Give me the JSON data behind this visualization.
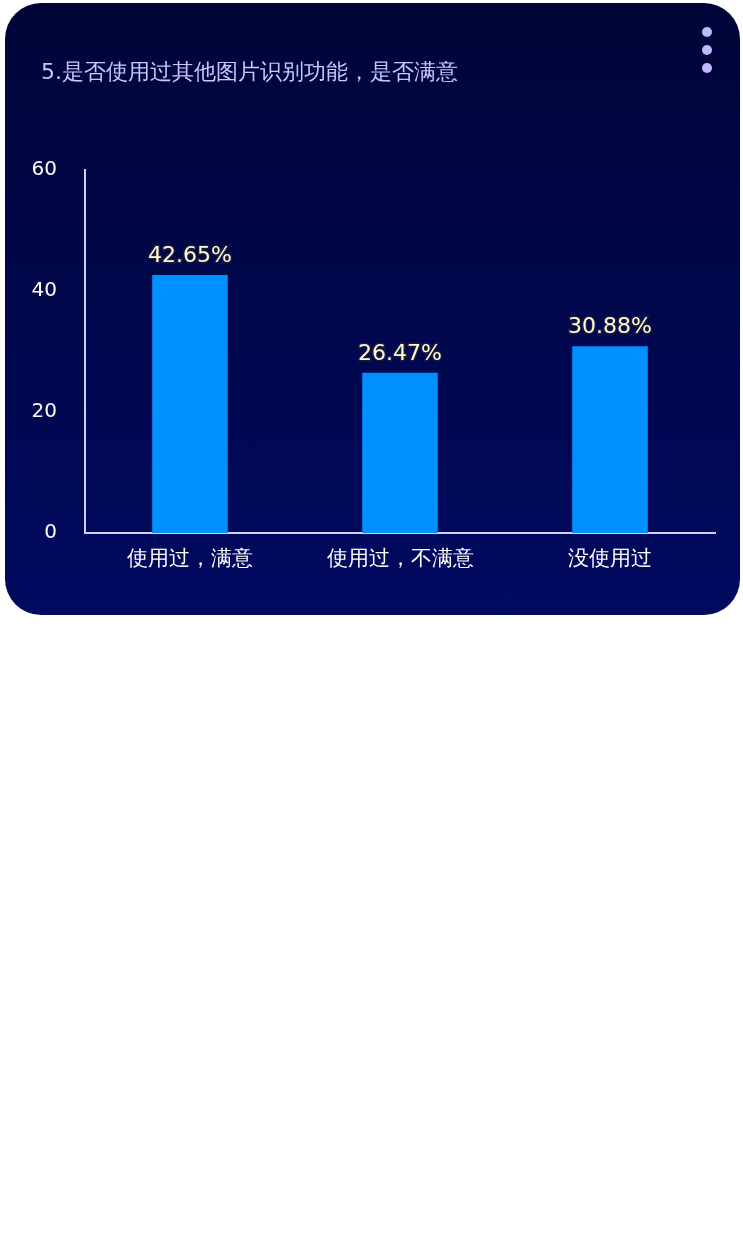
{
  "chart_data": {
    "type": "bar",
    "title": "5.是否使用过其他图片识别功能，是否满意",
    "categories": [
      "使用过，满意",
      "使用过，不满意",
      "没使用过"
    ],
    "values": [
      42.65,
      26.47,
      30.88
    ],
    "value_labels": [
      "42.65%",
      "26.47%",
      "30.88%"
    ],
    "color": "#0090ff",
    "ylim": [
      0,
      60
    ],
    "yticks": [
      0,
      20,
      40,
      60
    ],
    "grid": false
  }
}
